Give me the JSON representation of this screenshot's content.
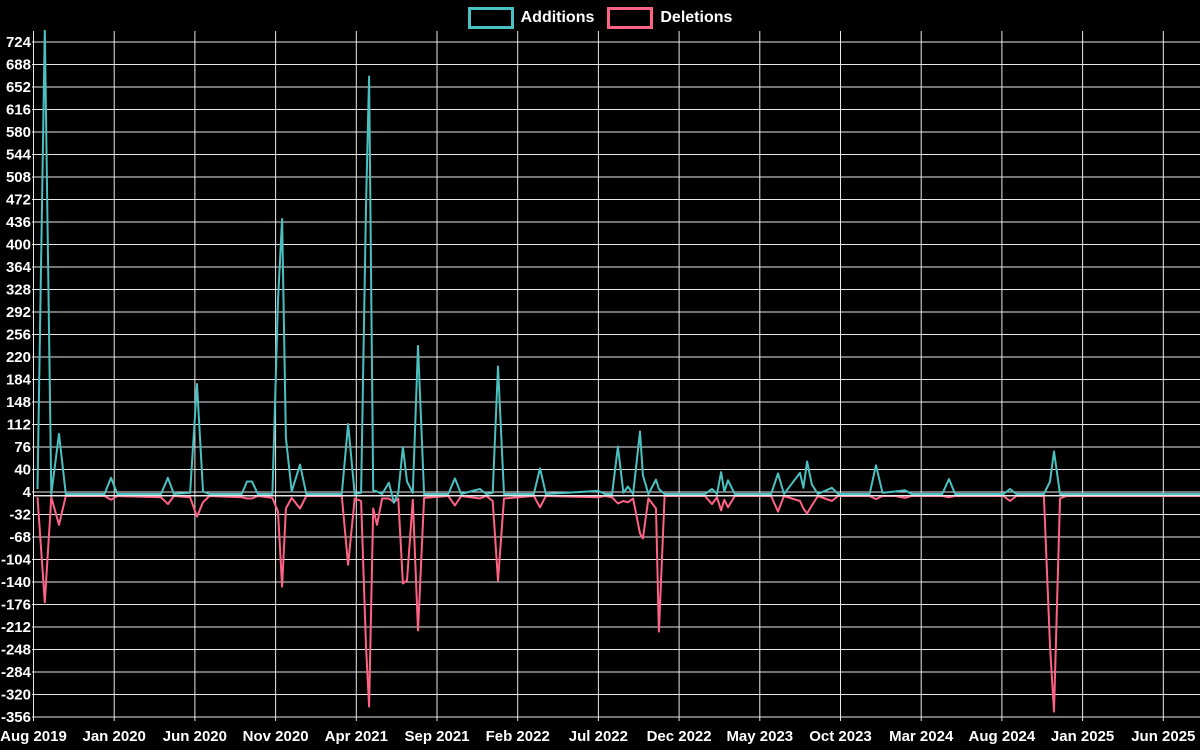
{
  "legend": {
    "items": [
      {
        "label": "Additions",
        "color": "#4bc0c0"
      },
      {
        "label": "Deletions",
        "color": "#ff6384"
      }
    ]
  },
  "colors": {
    "background": "#000000",
    "grid": "#e8e8e8",
    "zero_line": "#e8e8e8",
    "text": "#ffffff",
    "additions": "#4bc0c0",
    "deletions": "#ff6384"
  },
  "chart_data": {
    "type": "line",
    "title": "",
    "xlabel": "",
    "ylabel": "",
    "grid": true,
    "legend_position": "top-center",
    "x_axis": {
      "unit": "months since Aug 2019 (weekly commit activity)",
      "tick_labels": [
        "Aug 2019",
        "Jan 2020",
        "Jun 2020",
        "Nov 2020",
        "Apr 2021",
        "Sep 2021",
        "Feb 2022",
        "Jul 2022",
        "Dec 2022",
        "May 2023",
        "Oct 2023",
        "Mar 2024",
        "Aug 2024",
        "Jan 2025",
        "Jun 2025"
      ],
      "months_per_tick": 5,
      "x_range_months": [
        0,
        72.3
      ]
    },
    "y_axis": {
      "ticks": [
        724,
        688,
        652,
        616,
        580,
        544,
        508,
        472,
        436,
        400,
        364,
        328,
        292,
        256,
        220,
        184,
        148,
        112,
        76,
        40,
        4,
        -32,
        -68,
        -104,
        -140,
        -176,
        -212,
        -248,
        -284,
        -320,
        -356
      ],
      "min": -356,
      "max": 724,
      "step": 36
    },
    "notes": "First Additions spike at Aug 2019 exceeds the top of the plot (clipped above 724); stored here as 745.",
    "series": [
      {
        "name": "Additions",
        "color": "#4bc0c0",
        "points": [
          [
            0.25,
            8
          ],
          [
            0.7,
            745
          ],
          [
            1.1,
            0
          ],
          [
            1.58,
            96
          ],
          [
            2.0,
            0
          ],
          [
            4.4,
            0
          ],
          [
            4.8,
            26
          ],
          [
            5.2,
            0
          ],
          [
            7.9,
            0
          ],
          [
            8.33,
            26
          ],
          [
            8.7,
            0
          ],
          [
            9.7,
            2
          ],
          [
            10.13,
            176
          ],
          [
            10.5,
            4
          ],
          [
            10.9,
            0
          ],
          [
            12.9,
            0
          ],
          [
            13.23,
            20
          ],
          [
            13.54,
            20
          ],
          [
            13.9,
            0
          ],
          [
            14.8,
            0
          ],
          [
            15.15,
            310
          ],
          [
            15.4,
            440
          ],
          [
            15.64,
            90
          ],
          [
            16.0,
            4
          ],
          [
            16.51,
            47
          ],
          [
            16.9,
            0
          ],
          [
            19.1,
            0
          ],
          [
            19.49,
            112
          ],
          [
            19.9,
            0
          ],
          [
            20.3,
            2
          ],
          [
            20.6,
            460
          ],
          [
            20.79,
            668
          ],
          [
            21.05,
            6
          ],
          [
            21.28,
            4
          ],
          [
            21.6,
            0
          ],
          [
            22.02,
            18
          ],
          [
            22.33,
            -14
          ],
          [
            22.6,
            2
          ],
          [
            22.89,
            75
          ],
          [
            23.14,
            20
          ],
          [
            23.5,
            2
          ],
          [
            23.82,
            237
          ],
          [
            24.2,
            0
          ],
          [
            25.7,
            0
          ],
          [
            26.11,
            25
          ],
          [
            26.5,
            0
          ],
          [
            27.66,
            8
          ],
          [
            28.05,
            0
          ],
          [
            28.45,
            2
          ],
          [
            28.78,
            204
          ],
          [
            29.15,
            0
          ],
          [
            31.0,
            0
          ],
          [
            31.38,
            41
          ],
          [
            31.75,
            0
          ],
          [
            35.0,
            5
          ],
          [
            35.4,
            0
          ],
          [
            35.85,
            0
          ],
          [
            36.21,
            76
          ],
          [
            36.55,
            2
          ],
          [
            36.83,
            12
          ],
          [
            37.15,
            0
          ],
          [
            37.58,
            100
          ],
          [
            37.76,
            30
          ],
          [
            38.1,
            0
          ],
          [
            38.57,
            23
          ],
          [
            38.75,
            8
          ],
          [
            39.1,
            0
          ],
          [
            41.6,
            0
          ],
          [
            42.04,
            8
          ],
          [
            42.35,
            0
          ],
          [
            42.6,
            35
          ],
          [
            42.8,
            4
          ],
          [
            43.03,
            22
          ],
          [
            43.45,
            0
          ],
          [
            45.7,
            0
          ],
          [
            46.13,
            33
          ],
          [
            46.5,
            0
          ],
          [
            47.49,
            34
          ],
          [
            47.7,
            10
          ],
          [
            47.93,
            52
          ],
          [
            48.23,
            15
          ],
          [
            48.6,
            0
          ],
          [
            49.47,
            10
          ],
          [
            49.85,
            0
          ],
          [
            51.8,
            0
          ],
          [
            52.2,
            46
          ],
          [
            52.6,
            2
          ],
          [
            53.38,
            4
          ],
          [
            54.0,
            6
          ],
          [
            54.4,
            0
          ],
          [
            56.3,
            0
          ],
          [
            56.72,
            24
          ],
          [
            57.1,
            0
          ],
          [
            60.1,
            0
          ],
          [
            60.5,
            8
          ],
          [
            60.9,
            0
          ],
          [
            62.6,
            0
          ],
          [
            62.98,
            20
          ],
          [
            63.23,
            68
          ],
          [
            63.6,
            0
          ],
          [
            64.0,
            0
          ],
          [
            72.3,
            0
          ]
        ]
      },
      {
        "name": "Deletions",
        "color": "#ff6384",
        "points": [
          [
            0.25,
            -2
          ],
          [
            0.7,
            -170
          ],
          [
            1.1,
            -2
          ],
          [
            1.58,
            -46
          ],
          [
            2.0,
            0
          ],
          [
            4.4,
            0
          ],
          [
            4.8,
            -6
          ],
          [
            5.2,
            0
          ],
          [
            7.9,
            -2
          ],
          [
            8.33,
            -13
          ],
          [
            8.7,
            0
          ],
          [
            9.7,
            -2
          ],
          [
            10.13,
            -33
          ],
          [
            10.5,
            -10
          ],
          [
            10.9,
            0
          ],
          [
            12.9,
            -2
          ],
          [
            13.23,
            -4
          ],
          [
            13.54,
            -4
          ],
          [
            13.9,
            0
          ],
          [
            14.8,
            -3
          ],
          [
            15.15,
            -25
          ],
          [
            15.4,
            -145
          ],
          [
            15.64,
            -20
          ],
          [
            16.0,
            -3
          ],
          [
            16.51,
            -20
          ],
          [
            16.9,
            0
          ],
          [
            19.1,
            0
          ],
          [
            19.49,
            -110
          ],
          [
            19.9,
            -4
          ],
          [
            20.3,
            -8
          ],
          [
            20.6,
            -240
          ],
          [
            20.79,
            -337
          ],
          [
            21.05,
            -20
          ],
          [
            21.28,
            -46
          ],
          [
            21.6,
            -4
          ],
          [
            22.02,
            -4
          ],
          [
            22.33,
            -10
          ],
          [
            22.6,
            -4
          ],
          [
            22.89,
            -140
          ],
          [
            23.14,
            -135
          ],
          [
            23.5,
            -6
          ],
          [
            23.82,
            -215
          ],
          [
            24.2,
            -3
          ],
          [
            25.7,
            0
          ],
          [
            26.11,
            -15
          ],
          [
            26.5,
            0
          ],
          [
            27.66,
            -4
          ],
          [
            28.05,
            0
          ],
          [
            28.45,
            -8
          ],
          [
            28.78,
            -135
          ],
          [
            29.15,
            -4
          ],
          [
            31.0,
            0
          ],
          [
            31.38,
            -18
          ],
          [
            31.75,
            0
          ],
          [
            35.0,
            -2
          ],
          [
            35.4,
            0
          ],
          [
            35.85,
            -2
          ],
          [
            36.21,
            -12
          ],
          [
            36.55,
            -8
          ],
          [
            36.83,
            -10
          ],
          [
            37.15,
            -4
          ],
          [
            37.58,
            -60
          ],
          [
            37.76,
            -68
          ],
          [
            38.1,
            -4
          ],
          [
            38.57,
            -20
          ],
          [
            38.75,
            -217
          ],
          [
            39.1,
            0
          ],
          [
            41.6,
            0
          ],
          [
            42.04,
            -13
          ],
          [
            42.35,
            -2
          ],
          [
            42.6,
            -23
          ],
          [
            42.8,
            -6
          ],
          [
            43.03,
            -18
          ],
          [
            43.45,
            0
          ],
          [
            45.7,
            0
          ],
          [
            46.13,
            -25
          ],
          [
            46.5,
            0
          ],
          [
            47.49,
            -8
          ],
          [
            47.7,
            -20
          ],
          [
            47.93,
            -28
          ],
          [
            48.23,
            -15
          ],
          [
            48.6,
            0
          ],
          [
            49.47,
            -8
          ],
          [
            49.85,
            0
          ],
          [
            51.8,
            0
          ],
          [
            52.2,
            -5
          ],
          [
            52.6,
            0
          ],
          [
            53.38,
            0
          ],
          [
            54.0,
            -3
          ],
          [
            54.4,
            0
          ],
          [
            56.3,
            0
          ],
          [
            56.72,
            -2
          ],
          [
            57.1,
            0
          ],
          [
            60.1,
            0
          ],
          [
            60.5,
            -8
          ],
          [
            60.9,
            0
          ],
          [
            62.6,
            0
          ],
          [
            62.98,
            -240
          ],
          [
            63.23,
            -345
          ],
          [
            63.6,
            -4
          ],
          [
            64.0,
            0
          ],
          [
            72.3,
            0
          ]
        ]
      }
    ]
  }
}
